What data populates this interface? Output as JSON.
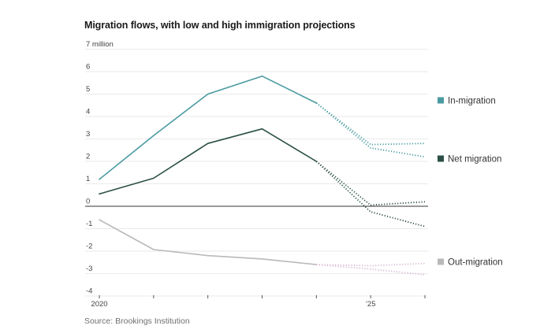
{
  "title": "Migration flows, with low and high immigration projections",
  "source": "Source: Brookings Institution",
  "chart_data": {
    "type": "line",
    "title": "Migration flows, with low and high immigration projections",
    "xlabel": "",
    "ylabel": "",
    "y_unit_label": "7 million",
    "ylim": [
      -4,
      7
    ],
    "yticks": [
      7,
      6,
      5,
      4,
      3,
      2,
      1,
      0,
      -1,
      -2,
      -3,
      -4
    ],
    "ytick_labels": [
      "7 million",
      "6",
      "5",
      "4",
      "3",
      "2",
      "1",
      "0",
      "-1",
      "-2",
      "-3",
      "-4"
    ],
    "xlim": [
      2020,
      2026
    ],
    "xticks": [
      2020,
      2021,
      2022,
      2023,
      2024,
      2025,
      2026
    ],
    "xtick_labels": [
      "2020",
      "",
      "",
      "",
      "",
      "’25",
      ""
    ],
    "grid": true,
    "legend_placement": "right",
    "series": [
      {
        "name": "In-migration",
        "color": "#4a9aa0",
        "x": [
          2020,
          2021,
          2022,
          2023,
          2024
        ],
        "values": [
          1.2,
          3.15,
          5.0,
          5.8,
          4.6
        ],
        "projections": [
          {
            "name": "high",
            "x": [
              2024,
              2025,
              2026
            ],
            "values": [
              4.6,
              2.75,
              2.8
            ]
          },
          {
            "name": "low",
            "x": [
              2024,
              2025,
              2026
            ],
            "values": [
              4.6,
              2.6,
              2.2
            ]
          }
        ]
      },
      {
        "name": "Net migration",
        "color": "#2b4f46",
        "x": [
          2020,
          2021,
          2022,
          2023,
          2024
        ],
        "values": [
          0.55,
          1.25,
          2.8,
          3.45,
          2.0
        ],
        "projections": [
          {
            "name": "high",
            "x": [
              2024,
              2025,
              2026
            ],
            "values": [
              2.0,
              0.05,
              0.2
            ]
          },
          {
            "name": "low",
            "x": [
              2024,
              2025,
              2026
            ],
            "values": [
              2.0,
              -0.25,
              -0.9
            ]
          }
        ]
      },
      {
        "name": "Out-migration",
        "color": "#b9b9b9",
        "projection_color": "#d6b8d2",
        "x": [
          2020,
          2021,
          2022,
          2023,
          2024
        ],
        "values": [
          -0.6,
          -1.93,
          -2.2,
          -2.35,
          -2.6
        ],
        "projections": [
          {
            "name": "high",
            "x": [
              2024,
              2025,
              2026
            ],
            "values": [
              -2.6,
              -2.65,
              -2.55
            ]
          },
          {
            "name": "low",
            "x": [
              2024,
              2025,
              2026
            ],
            "values": [
              -2.6,
              -2.8,
              -3.05
            ]
          }
        ]
      }
    ]
  }
}
